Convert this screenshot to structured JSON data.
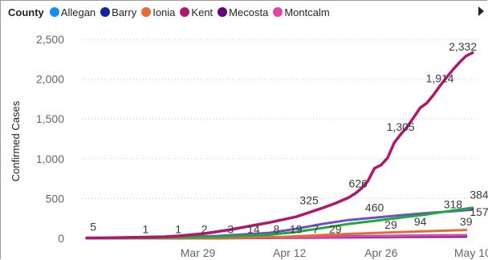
{
  "chart_data": {
    "type": "line",
    "legend_title": "County",
    "legend_position": "top-left",
    "ylabel": "Confirmed Cases",
    "xlabel": "",
    "ylim": [
      0,
      2500
    ],
    "y_ticks": [
      0,
      500,
      1000,
      1500,
      2000,
      2500
    ],
    "y_tick_labels": [
      "0",
      "500",
      "1,000",
      "1,500",
      "2,000",
      "2,500"
    ],
    "x_tick_labels": [
      "Mar 29",
      "Apr 12",
      "Apr 26",
      "May 10"
    ],
    "x_tick_days": [
      17,
      31,
      45,
      59
    ],
    "x_start": "Mar 12",
    "grid": true,
    "series": [
      {
        "name": "Allegan",
        "color": "#118DFF",
        "points": [
          [
            0,
            1
          ],
          [
            10,
            4
          ],
          [
            20,
            8
          ],
          [
            30,
            15
          ],
          [
            40,
            25
          ],
          [
            50,
            34
          ],
          [
            58,
            40
          ]
        ]
      },
      {
        "name": "Barry",
        "color": "#12239E",
        "points": [
          [
            0,
            0
          ],
          [
            10,
            3
          ],
          [
            20,
            6
          ],
          [
            30,
            12
          ],
          [
            40,
            20
          ],
          [
            50,
            28
          ],
          [
            58,
            34
          ]
        ]
      },
      {
        "name": "Ionia",
        "color": "#E66C37",
        "points": [
          [
            0,
            0
          ],
          [
            10,
            2
          ],
          [
            20,
            6
          ],
          [
            30,
            18
          ],
          [
            40,
            55
          ],
          [
            50,
            85
          ],
          [
            58,
            105
          ]
        ]
      },
      {
        "name": "Kent",
        "color": "#B0186F",
        "points": [
          [
            0,
            5
          ],
          [
            4,
            8
          ],
          [
            8,
            14
          ],
          [
            12,
            20
          ],
          [
            14,
            30
          ],
          [
            16,
            45
          ],
          [
            18,
            60
          ],
          [
            20,
            85
          ],
          [
            22,
            110
          ],
          [
            24,
            140
          ],
          [
            26,
            170
          ],
          [
            28,
            200
          ],
          [
            30,
            235
          ],
          [
            32,
            270
          ],
          [
            34,
            325
          ],
          [
            36,
            380
          ],
          [
            38,
            440
          ],
          [
            40,
            510
          ],
          [
            41,
            560
          ],
          [
            42,
            626
          ],
          [
            43,
            720
          ],
          [
            44,
            880
          ],
          [
            45,
            920
          ],
          [
            46,
            1010
          ],
          [
            47,
            1200
          ],
          [
            48,
            1305
          ],
          [
            49,
            1400
          ],
          [
            50,
            1520
          ],
          [
            51,
            1640
          ],
          [
            52,
            1700
          ],
          [
            53,
            1800
          ],
          [
            54,
            1914
          ],
          [
            55,
            2020
          ],
          [
            56,
            2120
          ],
          [
            57,
            2210
          ],
          [
            58,
            2290
          ],
          [
            59,
            2332
          ]
        ]
      },
      {
        "name": "Mecosta",
        "color": "#6B007B",
        "points": [
          [
            0,
            0
          ],
          [
            20,
            1
          ],
          [
            30,
            7
          ],
          [
            40,
            13
          ],
          [
            50,
            19
          ],
          [
            58,
            23
          ]
        ]
      },
      {
        "name": "Montcalm",
        "color": "#E044A7",
        "points": [
          [
            0,
            0
          ],
          [
            20,
            2
          ],
          [
            30,
            10
          ],
          [
            40,
            20
          ],
          [
            50,
            30
          ],
          [
            58,
            38
          ]
        ]
      },
      {
        "name": "",
        "color": "#744EC2",
        "points": [
          [
            0,
            0
          ],
          [
            10,
            8
          ],
          [
            20,
            30
          ],
          [
            28,
            70
          ],
          [
            32,
            120
          ],
          [
            36,
            180
          ],
          [
            40,
            230
          ],
          [
            44,
            260
          ],
          [
            48,
            290
          ],
          [
            52,
            318
          ],
          [
            56,
            340
          ],
          [
            59,
            360
          ]
        ]
      },
      {
        "name": "",
        "color": "#1AAB40",
        "points": [
          [
            0,
            0
          ],
          [
            10,
            6
          ],
          [
            20,
            20
          ],
          [
            28,
            45
          ],
          [
            32,
            80
          ],
          [
            36,
            130
          ],
          [
            40,
            180
          ],
          [
            44,
            220
          ],
          [
            48,
            260
          ],
          [
            52,
            300
          ],
          [
            56,
            350
          ],
          [
            59,
            384
          ]
        ]
      }
    ],
    "data_labels": [
      {
        "text": "5",
        "x": 1,
        "y": 95
      },
      {
        "text": "1",
        "x": 9,
        "y": 65
      },
      {
        "text": "1",
        "x": 14,
        "y": 65
      },
      {
        "text": "2",
        "x": 18,
        "y": 65
      },
      {
        "text": "3",
        "x": 22,
        "y": 65
      },
      {
        "text": "14",
        "x": 25.5,
        "y": 65
      },
      {
        "text": "8",
        "x": 29,
        "y": 65
      },
      {
        "text": "19",
        "x": 32,
        "y": 65
      },
      {
        "text": "7",
        "x": 35,
        "y": 65
      },
      {
        "text": "29",
        "x": 38,
        "y": 65
      },
      {
        "text": "325",
        "x": 34,
        "y": 430
      },
      {
        "text": "460",
        "x": 44,
        "y": 340
      },
      {
        "text": "29",
        "x": 46.5,
        "y": 120
      },
      {
        "text": "626",
        "x": 41.5,
        "y": 640
      },
      {
        "text": "94",
        "x": 51,
        "y": 160
      },
      {
        "text": "318",
        "x": 56,
        "y": 380
      },
      {
        "text": "39",
        "x": 58,
        "y": 160
      },
      {
        "text": "1,305",
        "x": 48,
        "y": 1350
      },
      {
        "text": "1,914",
        "x": 54,
        "y": 1960
      },
      {
        "text": "2,332",
        "x": 57.5,
        "y": 2360
      },
      {
        "text": "384",
        "x": 60,
        "y": 500
      },
      {
        "text": "157",
        "x": 60,
        "y": 280
      }
    ]
  }
}
